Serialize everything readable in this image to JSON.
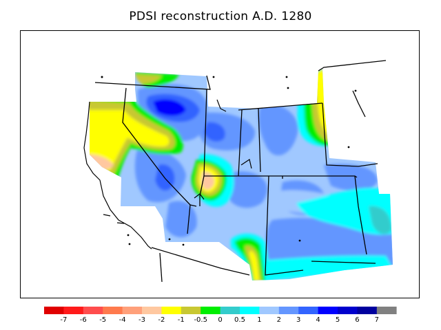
{
  "title": "PDSI reconstruction A.D. 1280",
  "legend": {
    "bins": [
      {
        "color": "#e00000"
      },
      {
        "color": "#ff1a1a"
      },
      {
        "color": "#ff4d4d"
      },
      {
        "color": "#ff7a4d"
      },
      {
        "color": "#ffa07a"
      },
      {
        "color": "#ffc8a0"
      },
      {
        "color": "#ffff00"
      },
      {
        "color": "#c8c832"
      },
      {
        "color": "#00ee00"
      },
      {
        "color": "#33cccc"
      },
      {
        "color": "#00ffff"
      },
      {
        "color": "#a0c8ff"
      },
      {
        "color": "#6496ff"
      },
      {
        "color": "#3264ff"
      },
      {
        "color": "#0000ff"
      },
      {
        "color": "#0000cd"
      },
      {
        "color": "#00009e"
      },
      {
        "color": "#808080"
      }
    ],
    "ticks": [
      "-7",
      "-6",
      "-5",
      "-4",
      "-3",
      "-2",
      "-1",
      "-0.5",
      "0",
      "0.5",
      "1",
      "2",
      "3",
      "4",
      "5",
      "6",
      "7"
    ]
  },
  "palette": {
    "frame": "#000000",
    "coast": "#000000",
    "base": "#a0c8ff"
  }
}
